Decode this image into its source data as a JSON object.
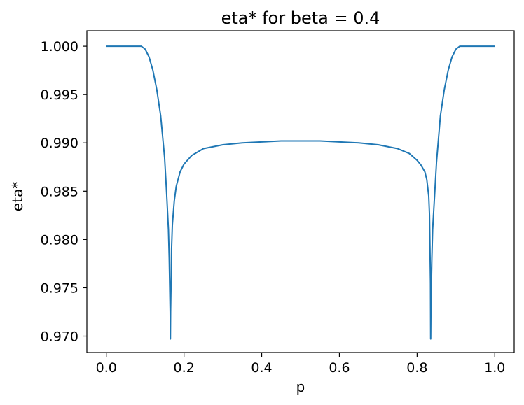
{
  "chart_data": {
    "type": "line",
    "title": "eta* for beta = 0.4",
    "xlabel": "p",
    "ylabel": "eta*",
    "xlim": [
      -0.05,
      1.05
    ],
    "ylim": [
      0.9683,
      1.0016
    ],
    "x_ticks": [
      0.0,
      0.2,
      0.4,
      0.6,
      0.8,
      1.0
    ],
    "x_tick_labels": [
      "0.0",
      "0.2",
      "0.4",
      "0.6",
      "0.8",
      "1.0"
    ],
    "y_ticks": [
      0.97,
      0.975,
      0.98,
      0.985,
      0.99,
      0.995,
      1.0
    ],
    "y_tick_labels": [
      "0.970",
      "0.975",
      "0.980",
      "0.985",
      "0.990",
      "0.995",
      "1.000"
    ],
    "grid": false,
    "series": [
      {
        "color": "#1f77b4",
        "x": [
          0.0,
          0.05,
          0.09,
          0.1,
          0.11,
          0.12,
          0.13,
          0.14,
          0.15,
          0.155,
          0.16,
          0.162,
          0.1645,
          0.165,
          0.1655,
          0.168,
          0.17,
          0.175,
          0.18,
          0.19,
          0.2,
          0.22,
          0.25,
          0.3,
          0.35,
          0.4,
          0.45,
          0.5,
          0.55,
          0.6,
          0.65,
          0.7,
          0.75,
          0.78,
          0.8,
          0.81,
          0.82,
          0.825,
          0.83,
          0.832,
          0.8345,
          0.835,
          0.8355,
          0.838,
          0.84,
          0.845,
          0.85,
          0.86,
          0.87,
          0.88,
          0.89,
          0.9,
          0.91,
          0.95,
          1.0
        ],
        "y": [
          1.0,
          1.0,
          1.0,
          0.9997,
          0.9989,
          0.9975,
          0.9955,
          0.9928,
          0.9885,
          0.985,
          0.981,
          0.978,
          0.9725,
          0.9697,
          0.9725,
          0.979,
          0.9815,
          0.984,
          0.9855,
          0.987,
          0.9878,
          0.9887,
          0.9894,
          0.9898,
          0.99,
          0.9901,
          0.9902,
          0.9902,
          0.9902,
          0.9901,
          0.99,
          0.9898,
          0.9894,
          0.9889,
          0.9882,
          0.9877,
          0.987,
          0.9862,
          0.9845,
          0.9825,
          0.9755,
          0.9697,
          0.9725,
          0.978,
          0.981,
          0.9845,
          0.988,
          0.9928,
          0.9955,
          0.9975,
          0.9989,
          0.9997,
          1.0,
          1.0,
          1.0
        ]
      }
    ]
  }
}
